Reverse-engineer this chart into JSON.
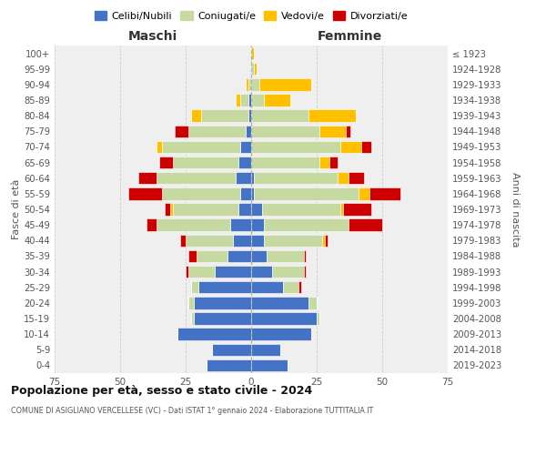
{
  "age_groups": [
    "0-4",
    "5-9",
    "10-14",
    "15-19",
    "20-24",
    "25-29",
    "30-34",
    "35-39",
    "40-44",
    "45-49",
    "50-54",
    "55-59",
    "60-64",
    "65-69",
    "70-74",
    "75-79",
    "80-84",
    "85-89",
    "90-94",
    "95-99",
    "100+"
  ],
  "birth_years": [
    "2019-2023",
    "2014-2018",
    "2009-2013",
    "2004-2008",
    "1999-2003",
    "1994-1998",
    "1989-1993",
    "1984-1988",
    "1979-1983",
    "1974-1978",
    "1969-1973",
    "1964-1968",
    "1959-1963",
    "1954-1958",
    "1949-1953",
    "1944-1948",
    "1939-1943",
    "1934-1938",
    "1929-1933",
    "1924-1928",
    "≤ 1923"
  ],
  "colors": {
    "celibi": "#4472c4",
    "coniugati": "#c5d9a0",
    "vedovi": "#ffc000",
    "divorziati": "#cc0000"
  },
  "maschi": {
    "celibi": [
      17,
      15,
      28,
      22,
      22,
      20,
      14,
      9,
      7,
      8,
      5,
      4,
      6,
      5,
      4,
      2,
      1,
      1,
      0,
      0,
      0
    ],
    "coniugati": [
      0,
      0,
      0,
      1,
      2,
      3,
      10,
      12,
      18,
      28,
      25,
      30,
      30,
      25,
      30,
      22,
      18,
      3,
      1,
      0,
      0
    ],
    "vedovi": [
      0,
      0,
      0,
      0,
      0,
      0,
      0,
      0,
      0,
      0,
      1,
      0,
      0,
      0,
      2,
      0,
      4,
      2,
      1,
      0,
      0
    ],
    "divorziati": [
      0,
      0,
      0,
      0,
      0,
      0,
      1,
      3,
      2,
      4,
      2,
      13,
      7,
      5,
      0,
      5,
      0,
      0,
      0,
      0,
      0
    ]
  },
  "femmine": {
    "celibi": [
      14,
      11,
      23,
      25,
      22,
      12,
      8,
      6,
      5,
      5,
      4,
      1,
      1,
      0,
      0,
      0,
      0,
      0,
      0,
      0,
      0
    ],
    "coniugati": [
      0,
      0,
      0,
      1,
      3,
      6,
      12,
      14,
      22,
      32,
      30,
      40,
      32,
      26,
      34,
      26,
      22,
      5,
      3,
      1,
      0
    ],
    "vedovi": [
      0,
      0,
      0,
      0,
      0,
      0,
      0,
      0,
      1,
      0,
      1,
      4,
      4,
      4,
      8,
      10,
      18,
      10,
      20,
      1,
      1
    ],
    "divorziati": [
      0,
      0,
      0,
      0,
      0,
      1,
      1,
      1,
      1,
      13,
      11,
      12,
      6,
      3,
      4,
      2,
      0,
      0,
      0,
      0,
      0
    ]
  },
  "title": "Popolazione per età, sesso e stato civile - 2024",
  "subtitle": "COMUNE DI ASIGLIANO VERCELLESE (VC) - Dati ISTAT 1° gennaio 2024 - Elaborazione TUTTITALIA.IT",
  "xlabel_left": "Maschi",
  "xlabel_right": "Femmine",
  "ylabel_left": "Fasce di età",
  "ylabel_right": "Anni di nascita",
  "xlim": 75,
  "legend_labels": [
    "Celibi/Nubili",
    "Coniugati/e",
    "Vedovi/e",
    "Divorziati/e"
  ],
  "bg_color": "#ffffff",
  "plot_bg_color": "#efefef",
  "grid_color": "#cccccc"
}
